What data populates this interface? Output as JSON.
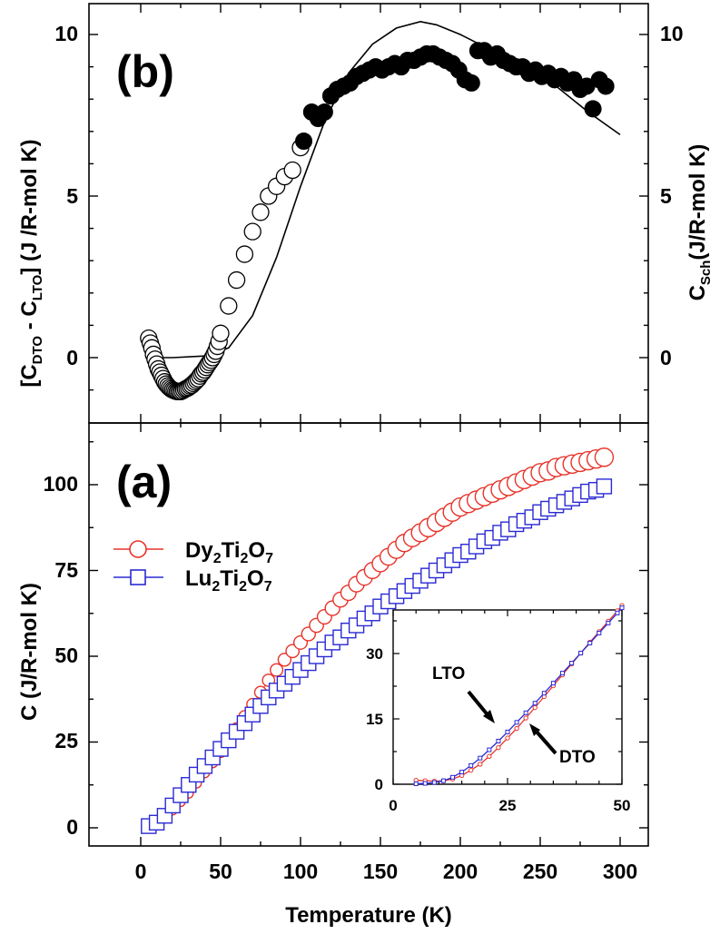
{
  "chart_data": [
    {
      "panel": "(b)",
      "type": "scatter",
      "xlabel": "Temperature (K)",
      "ylabel": "[C_DTO - C_LTO] (J /R-mol K)",
      "ylabel_parts": {
        "open": "[C",
        "sub1": "DTO",
        "mid": " - C",
        "sub2": "LTO",
        "close": "] (J /R-mol K)"
      },
      "y2label_parts": {
        "main": "C",
        "sub": "Sch",
        "rest": "(J/R-mol K)"
      },
      "xlim": [
        -30,
        320
      ],
      "ylim": [
        -2,
        10.9
      ],
      "y_ticks": [
        0,
        5,
        10
      ],
      "y2_ticks": [
        0,
        5,
        10
      ],
      "series": [
        {
          "marker": "open-circle",
          "x": [
            5,
            6,
            7,
            8,
            9,
            10,
            11,
            12,
            13,
            14,
            15,
            16,
            17,
            18,
            19,
            20,
            21,
            22,
            23,
            24,
            25,
            26,
            27,
            28,
            29,
            30,
            31,
            32,
            33,
            34,
            35,
            36,
            37,
            38,
            39,
            40,
            41,
            42,
            43,
            44,
            45,
            46,
            47,
            48,
            49,
            50,
            55,
            60,
            65,
            70,
            75,
            80,
            85,
            90,
            95,
            100
          ],
          "y": [
            0.6,
            0.45,
            0.3,
            0.1,
            -0.05,
            -0.2,
            -0.35,
            -0.45,
            -0.55,
            -0.65,
            -0.75,
            -0.82,
            -0.88,
            -0.93,
            -0.97,
            -1.0,
            -1.02,
            -1.04,
            -1.05,
            -1.05,
            -1.05,
            -1.03,
            -1.0,
            -0.97,
            -0.95,
            -0.92,
            -0.88,
            -0.85,
            -0.8,
            -0.75,
            -0.7,
            -0.65,
            -0.57,
            -0.5,
            -0.45,
            -0.38,
            -0.3,
            -0.22,
            -0.15,
            -0.08,
            0.0,
            0.1,
            0.2,
            0.35,
            0.5,
            0.75,
            1.6,
            2.4,
            3.2,
            3.9,
            4.5,
            5.0,
            5.3,
            5.6,
            5.8,
            6.5
          ]
        },
        {
          "marker": "filled-circle",
          "x": [
            102,
            107,
            111,
            115,
            119,
            123,
            127,
            131,
            135,
            139,
            143,
            147,
            151,
            155,
            159,
            163,
            167,
            171,
            175,
            179,
            183,
            187,
            191,
            195,
            199,
            203,
            207,
            211,
            215,
            219,
            223,
            227,
            231,
            235,
            239,
            243,
            247,
            251,
            255,
            259,
            263,
            267,
            271,
            275,
            279,
            283,
            287,
            291
          ],
          "y": [
            6.7,
            7.6,
            7.4,
            7.6,
            8.1,
            8.3,
            8.4,
            8.5,
            8.7,
            8.8,
            8.9,
            9.0,
            8.9,
            9.0,
            9.1,
            9.0,
            9.2,
            9.2,
            9.3,
            9.4,
            9.4,
            9.3,
            9.2,
            9.1,
            8.9,
            8.6,
            8.5,
            9.5,
            9.5,
            9.3,
            9.4,
            9.2,
            9.1,
            9.0,
            9.0,
            8.8,
            8.9,
            8.7,
            8.8,
            8.6,
            8.7,
            8.5,
            8.6,
            8.3,
            8.4,
            7.7,
            8.6,
            8.4
          ]
        },
        {
          "marker": "line",
          "label": "C_Sch",
          "x": [
            5,
            20,
            40,
            55,
            70,
            85,
            100,
            115,
            130,
            145,
            160,
            175,
            185,
            200,
            220,
            240,
            260,
            280,
            300
          ],
          "y": [
            0.0,
            0.0,
            0.05,
            0.3,
            1.3,
            3.1,
            5.3,
            7.3,
            8.8,
            9.7,
            10.2,
            10.4,
            10.3,
            10.0,
            9.5,
            9.0,
            8.4,
            7.6,
            6.9
          ]
        }
      ]
    },
    {
      "panel": "(a)",
      "type": "scatter",
      "xlabel": "Temperature (K)",
      "ylabel": "C (J/R-mol K)",
      "xlim": [
        -30,
        320
      ],
      "ylim": [
        -5,
        117
      ],
      "x_ticks": [
        0,
        50,
        100,
        150,
        200,
        250,
        300
      ],
      "y_ticks": [
        0,
        25,
        50,
        75,
        100
      ],
      "legend_position": "top-left",
      "series": [
        {
          "name": "Dy2Ti2O7",
          "name_parts": {
            "a": "Dy",
            "b": "2",
            "c": "Ti",
            "d": "2",
            "e": "O",
            "f": "7"
          },
          "color": "#e8332a",
          "marker": "open-circle",
          "x": [
            5,
            10,
            15,
            20,
            25,
            30,
            35,
            40,
            45,
            50,
            55,
            60,
            65,
            70,
            75,
            80,
            85,
            90,
            95,
            100,
            105,
            110,
            115,
            120,
            125,
            130,
            135,
            140,
            145,
            150,
            155,
            160,
            165,
            170,
            175,
            180,
            185,
            190,
            195,
            200,
            205,
            210,
            215,
            220,
            225,
            230,
            235,
            240,
            245,
            250,
            255,
            260,
            265,
            270,
            275,
            280,
            285,
            290
          ],
          "y": [
            1,
            1.5,
            3,
            5,
            7.5,
            10,
            13,
            16,
            19,
            22,
            25.5,
            29,
            32.5,
            36,
            39.5,
            43,
            46,
            49,
            51.5,
            54,
            56.5,
            59,
            61.5,
            64,
            66.5,
            68.5,
            71,
            73,
            75,
            77,
            79,
            81,
            83,
            84.5,
            86,
            87.5,
            89,
            90.5,
            92,
            93.5,
            94.5,
            95.5,
            96.5,
            97.5,
            98.5,
            99.5,
            100.5,
            101.5,
            102.5,
            103.5,
            104,
            105,
            105.5,
            106,
            106.5,
            107,
            107.5,
            108
          ]
        },
        {
          "name": "Lu2Ti2O7",
          "name_parts": {
            "a": "Lu",
            "b": "2",
            "c": "Ti",
            "d": "2",
            "e": "O",
            "f": "7"
          },
          "color": "#2a2ad4",
          "marker": "open-square",
          "x": [
            5,
            10,
            15,
            20,
            25,
            30,
            35,
            40,
            45,
            50,
            55,
            60,
            65,
            70,
            75,
            80,
            85,
            90,
            95,
            100,
            105,
            110,
            115,
            120,
            125,
            130,
            135,
            140,
            145,
            150,
            155,
            160,
            165,
            170,
            175,
            180,
            185,
            190,
            195,
            200,
            205,
            210,
            215,
            220,
            225,
            230,
            235,
            240,
            245,
            250,
            255,
            260,
            265,
            270,
            275,
            280,
            285,
            290
          ],
          "y": [
            0.5,
            1.5,
            3.5,
            6.5,
            9.5,
            12.5,
            15.5,
            18,
            20.5,
            23,
            25.5,
            28,
            30.5,
            33,
            35.5,
            38,
            40,
            42,
            44,
            46,
            48,
            50,
            52,
            54,
            55.5,
            57.5,
            59,
            61,
            62.5,
            64.5,
            66,
            67.5,
            69,
            70.5,
            72,
            73.5,
            75,
            76.5,
            78,
            79.5,
            80.5,
            82,
            83.5,
            84.5,
            86,
            87,
            88.5,
            89.5,
            90.5,
            92,
            93,
            94,
            95,
            96,
            97,
            98,
            98.5,
            99.5
          ]
        }
      ],
      "inset": {
        "type": "line",
        "xlim": [
          0,
          50
        ],
        "ylim": [
          0,
          40
        ],
        "x_ticks": [
          0,
          25,
          50
        ],
        "y_ticks": [
          0,
          15,
          30
        ],
        "annotations": [
          "LTO",
          "DTO"
        ],
        "series": [
          {
            "name": "DTO",
            "color": "#e8332a",
            "x": [
              5,
              7,
              9,
              11,
              13,
              15,
              17,
              19,
              21,
              23,
              25,
              27,
              29,
              31,
              33,
              35,
              37,
              39,
              41,
              43,
              45,
              47,
              49,
              50
            ],
            "y": [
              0.9,
              0.8,
              0.7,
              0.8,
              1.2,
              2.0,
              3.2,
              4.6,
              6.4,
              8.4,
              10.6,
              12.8,
              15.2,
              17.6,
              20.1,
              22.6,
              25.1,
              27.6,
              30.1,
              32.6,
              35.0,
              37.4,
              39.8,
              41.0
            ]
          },
          {
            "name": "LTO",
            "color": "#2a2ad4",
            "x": [
              5,
              7,
              9,
              11,
              13,
              15,
              17,
              19,
              21,
              23,
              25,
              27,
              29,
              31,
              33,
              35,
              37,
              39,
              41,
              43,
              45,
              47,
              49,
              50
            ],
            "y": [
              0.1,
              0.2,
              0.4,
              0.8,
              1.6,
              2.8,
              4.3,
              6.0,
              7.9,
              9.9,
              12.0,
              14.2,
              16.4,
              18.6,
              20.9,
              23.2,
              25.5,
              27.8,
              30.1,
              32.4,
              34.7,
              37.0,
              39.3,
              40.5
            ]
          }
        ]
      }
    }
  ]
}
